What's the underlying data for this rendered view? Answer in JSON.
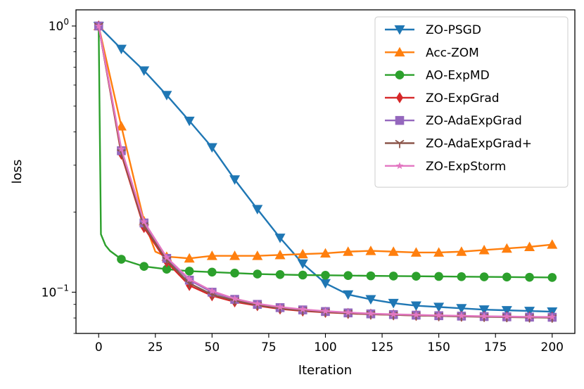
{
  "chart_data": {
    "type": "line",
    "xlabel": "Iteration",
    "ylabel": "loss",
    "xlim": [
      -10,
      210
    ],
    "ylim": [
      0.07,
      1.15
    ],
    "yscale": "log",
    "grid": false,
    "legend_position": "top-right",
    "x_ticks": [
      {
        "value": 0,
        "label": "0"
      },
      {
        "value": 25,
        "label": "25"
      },
      {
        "value": 50,
        "label": "50"
      },
      {
        "value": 75,
        "label": "75"
      },
      {
        "value": 100,
        "label": "100"
      },
      {
        "value": 125,
        "label": "125"
      },
      {
        "value": 150,
        "label": "150"
      },
      {
        "value": 175,
        "label": "175"
      },
      {
        "value": 200,
        "label": "200"
      }
    ],
    "y_ticks": [
      {
        "value": 1.0,
        "base": "10",
        "exp": "0"
      },
      {
        "value": 0.1,
        "base": "10",
        "exp": "−1"
      }
    ],
    "marker_x": [
      0,
      10,
      20,
      30,
      40,
      50,
      60,
      70,
      80,
      90,
      100,
      110,
      120,
      130,
      140,
      150,
      160,
      170,
      180,
      190,
      200
    ],
    "series": [
      {
        "name": "ZO-PSGD",
        "color": "#1f77b4",
        "marker": "triangle-down",
        "x": [
          0,
          10,
          20,
          30,
          40,
          50,
          60,
          70,
          80,
          90,
          100,
          110,
          120,
          130,
          140,
          150,
          160,
          170,
          180,
          190,
          200
        ],
        "y": [
          1.0,
          0.82,
          0.68,
          0.55,
          0.44,
          0.35,
          0.265,
          0.205,
          0.16,
          0.128,
          0.108,
          0.098,
          0.094,
          0.091,
          0.089,
          0.088,
          0.087,
          0.086,
          0.0855,
          0.085,
          0.0845
        ]
      },
      {
        "name": "Acc-ZOM",
        "color": "#ff7f0e",
        "marker": "triangle-up",
        "x": [
          0,
          10,
          20,
          25,
          30,
          40,
          50,
          60,
          70,
          80,
          90,
          100,
          110,
          120,
          130,
          140,
          150,
          160,
          170,
          180,
          190,
          200
        ],
        "y": [
          1.0,
          0.42,
          0.185,
          0.142,
          0.136,
          0.134,
          0.137,
          0.137,
          0.137,
          0.138,
          0.139,
          0.14,
          0.142,
          0.143,
          0.142,
          0.141,
          0.141,
          0.142,
          0.144,
          0.146,
          0.148,
          0.151
        ]
      },
      {
        "name": "AO-ExpMD",
        "color": "#2ca02c",
        "marker": "circle",
        "x": [
          0,
          1,
          3,
          5,
          10,
          20,
          30,
          40,
          50,
          60,
          70,
          80,
          90,
          100,
          110,
          120,
          130,
          140,
          150,
          160,
          170,
          180,
          190,
          200
        ],
        "y": [
          1.0,
          0.165,
          0.15,
          0.143,
          0.133,
          0.125,
          0.122,
          0.12,
          0.119,
          0.118,
          0.117,
          0.1165,
          0.116,
          0.1158,
          0.1155,
          0.1152,
          0.115,
          0.1148,
          0.1146,
          0.1144,
          0.1142,
          0.114,
          0.1138,
          0.1136
        ]
      },
      {
        "name": "ZO-ExpGrad",
        "color": "#d62728",
        "marker": "diamond",
        "x": [
          0,
          10,
          20,
          30,
          40,
          50,
          60,
          70,
          80,
          90,
          100,
          110,
          120,
          130,
          140,
          150,
          160,
          170,
          180,
          190,
          200
        ],
        "y": [
          1.0,
          0.33,
          0.175,
          0.13,
          0.106,
          0.097,
          0.092,
          0.089,
          0.0865,
          0.085,
          0.084,
          0.0832,
          0.0826,
          0.0822,
          0.0818,
          0.0815,
          0.0812,
          0.081,
          0.0808,
          0.0806,
          0.0805
        ]
      },
      {
        "name": "ZO-AdaExpGrad",
        "color": "#9467bd",
        "marker": "square",
        "x": [
          0,
          10,
          20,
          30,
          40,
          50,
          60,
          70,
          80,
          90,
          100,
          110,
          120,
          130,
          140,
          150,
          160,
          170,
          180,
          190,
          200
        ],
        "y": [
          1.0,
          0.34,
          0.182,
          0.134,
          0.111,
          0.1,
          0.094,
          0.09,
          0.0875,
          0.0858,
          0.0846,
          0.0836,
          0.0829,
          0.0824,
          0.082,
          0.0816,
          0.0813,
          0.081,
          0.0808,
          0.0806,
          0.0805
        ]
      },
      {
        "name": "ZO-AdaExpGrad+",
        "color": "#8c564b",
        "marker": "tri-down",
        "x": [
          0,
          10,
          20,
          30,
          40,
          50,
          60,
          70,
          80,
          90,
          100,
          110,
          120,
          130,
          140,
          150,
          160,
          170,
          180,
          190,
          200
        ],
        "y": [
          1.0,
          0.335,
          0.178,
          0.132,
          0.108,
          0.098,
          0.093,
          0.0895,
          0.087,
          0.0855,
          0.0843,
          0.0834,
          0.0827,
          0.0822,
          0.0818,
          0.0814,
          0.0811,
          0.0808,
          0.0806,
          0.0804,
          0.0802
        ]
      },
      {
        "name": "ZO-ExpStorm",
        "color": "#e377c2",
        "marker": "star",
        "x": [
          0,
          10,
          20,
          30,
          40,
          50,
          60,
          70,
          80,
          90,
          100,
          110,
          120,
          130,
          140,
          150,
          160,
          170,
          180,
          190,
          200
        ],
        "y": [
          1.0,
          0.345,
          0.184,
          0.135,
          0.112,
          0.101,
          0.0945,
          0.0905,
          0.088,
          0.0862,
          0.0849,
          0.0839,
          0.0831,
          0.0826,
          0.0822,
          0.0818,
          0.0815,
          0.0812,
          0.081,
          0.0808,
          0.0807
        ]
      }
    ]
  }
}
